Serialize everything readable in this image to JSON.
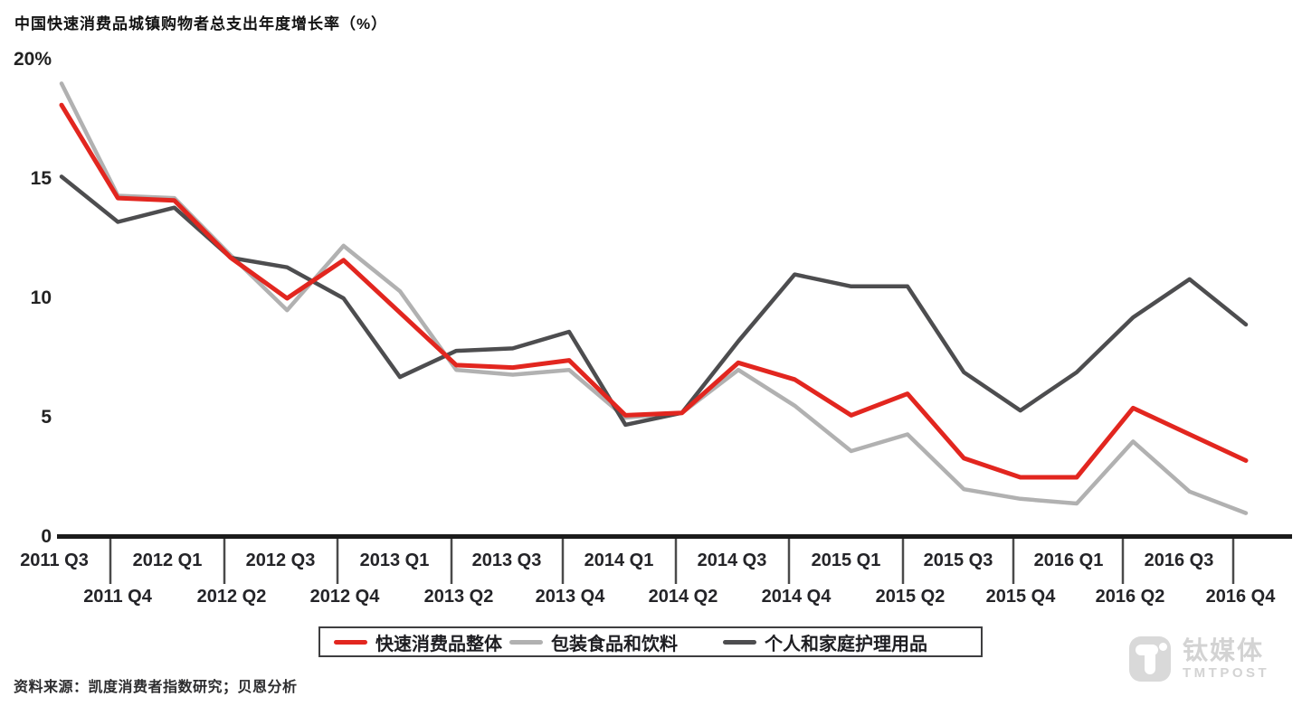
{
  "title": "中国快速消费品城镇购物者总支出年度增长率（%）",
  "source": "资料来源：凯度消费者指数研究；贝恩分析",
  "watermark": {
    "cn": "钛媒体",
    "en": "TMTPOST"
  },
  "chart_data": {
    "type": "line",
    "title": "中国快速消费品城镇购物者总支出年度增长率（%）",
    "categories": [
      "2011 Q3",
      "2011 Q4",
      "2012 Q1",
      "2012 Q2",
      "2012 Q3",
      "2012 Q4",
      "2013 Q1",
      "2013 Q2",
      "2013 Q3",
      "2013 Q4",
      "2014 Q1",
      "2014 Q2",
      "2014 Q3",
      "2014 Q4",
      "2015 Q1",
      "2015 Q2",
      "2015 Q3",
      "2015 Q4",
      "2016 Q1",
      "2016 Q2",
      "2016 Q3",
      "2016 Q4"
    ],
    "x_labels_row1": [
      "2011 Q3",
      "2012 Q1",
      "2012 Q3",
      "2013 Q1",
      "2013 Q3",
      "2014 Q1",
      "2014 Q3",
      "2015 Q1",
      "2015 Q3",
      "2016 Q1",
      "2016 Q3"
    ],
    "x_labels_row2": [
      "2011 Q4",
      "2012 Q2",
      "2012 Q4",
      "2013 Q2",
      "2013 Q4",
      "2014 Q2",
      "2014 Q4",
      "2015 Q2",
      "2015 Q4",
      "2016 Q2",
      "2016 Q4"
    ],
    "y_ticks": [
      {
        "label": "20%",
        "value": 20
      },
      {
        "label": "15",
        "value": 15
      },
      {
        "label": "10",
        "value": 10
      },
      {
        "label": "5",
        "value": 5
      },
      {
        "label": "0",
        "value": 0
      }
    ],
    "ylim": [
      0,
      20
    ],
    "grid": false,
    "legend_position": "bottom",
    "axis_color": "#1b1b1b",
    "tick_color": "#4a4a4a",
    "series": [
      {
        "name": "快速消费品整体",
        "color": "#e2261f",
        "values": [
          18.1,
          14.2,
          14.1,
          11.7,
          10.0,
          11.6,
          9.4,
          7.2,
          7.1,
          7.4,
          5.1,
          5.2,
          7.3,
          6.6,
          5.1,
          6.0,
          3.3,
          2.5,
          2.5,
          5.4,
          4.3,
          3.2
        ]
      },
      {
        "name": "包装食品和饮料",
        "color": "#b1b1b1",
        "values": [
          19.0,
          14.3,
          14.2,
          11.8,
          9.5,
          12.2,
          10.3,
          7.0,
          6.8,
          7.0,
          5.0,
          5.2,
          7.0,
          5.5,
          3.6,
          4.3,
          2.0,
          1.6,
          1.4,
          4.0,
          1.9,
          1.0
        ]
      },
      {
        "name": "个人和家庭护理用品",
        "color": "#4d4d4f",
        "values": [
          15.1,
          13.2,
          13.8,
          11.7,
          11.3,
          10.0,
          6.7,
          7.8,
          7.9,
          8.6,
          4.7,
          5.2,
          8.2,
          11.0,
          10.5,
          10.5,
          6.9,
          5.3,
          6.9,
          9.2,
          10.8,
          8.9
        ]
      }
    ]
  }
}
